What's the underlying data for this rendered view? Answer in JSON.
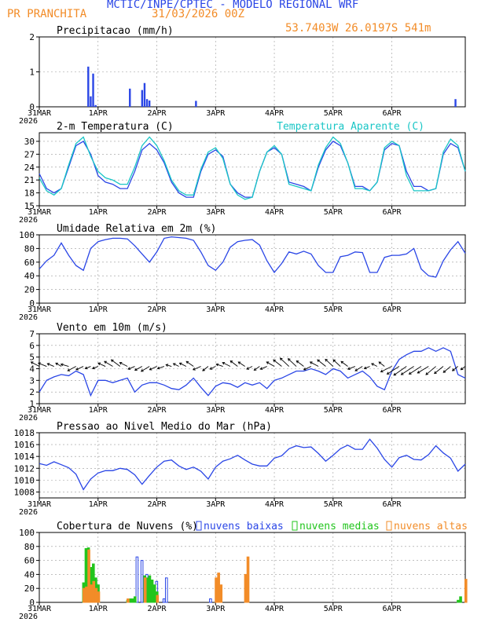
{
  "header": {
    "title": "MCTIC/INPE/CPTEC - MODELO REGIONAL WRF",
    "location": "PR PRANCHITA",
    "run_date": "31/03/2026 00Z",
    "coords": "53.7403W 26.0197S 541m"
  },
  "colors": {
    "blue": "#2a46e6",
    "cyan": "#19c6c6",
    "green": "#22c51d",
    "orange": "#f28c28",
    "grid": "#9a9a9a",
    "black": "#000000"
  },
  "x_ticks": [
    "31MAR",
    "1APR",
    "2APR",
    "3APR",
    "4APR",
    "5APR",
    "6APR"
  ],
  "x_year": "2026",
  "chart_data": [
    {
      "id": "precip",
      "type": "bar",
      "title": "Precipitacao (mm/h)",
      "ylim": [
        0,
        2
      ],
      "yticks": [
        0,
        1,
        2
      ],
      "x_unit": "hours since 31MAR 00Z",
      "x": [
        20,
        21,
        22,
        23,
        37,
        42,
        43,
        44,
        45,
        64,
        170
      ],
      "values": [
        1.15,
        0.3,
        0.95,
        0.05,
        0.52,
        0.48,
        0.68,
        0.22,
        0.18,
        0.17,
        0.22
      ]
    },
    {
      "id": "temp",
      "type": "line",
      "title": "2-m Temperatura (C)",
      "legend": "Temperatura Aparente (C)",
      "ylim": [
        15,
        32
      ],
      "yticks": [
        15,
        18,
        21,
        24,
        27,
        30
      ],
      "x_unit": "hours since 31MAR 00Z",
      "series": [
        {
          "name": "Temperatura (C)",
          "color": "blue",
          "x": [
            0,
            3,
            6,
            9,
            12,
            15,
            18,
            21,
            24,
            27,
            30,
            33,
            36,
            39,
            42,
            45,
            48,
            51,
            54,
            57,
            60,
            63,
            66,
            69,
            72,
            75,
            78,
            81,
            84,
            87,
            90,
            93,
            96,
            99,
            102,
            105,
            108,
            111,
            114,
            117,
            120,
            123,
            126,
            129,
            132,
            135,
            138,
            141,
            144,
            147,
            150,
            153,
            156,
            159,
            162,
            165,
            168,
            171,
            174
          ],
          "y": [
            22.5,
            19,
            18,
            19,
            24,
            29,
            30,
            27,
            22,
            20.5,
            20,
            19,
            19,
            23,
            28,
            29.5,
            28,
            25,
            20.5,
            18,
            17,
            17,
            23,
            27,
            28,
            26.5,
            20,
            18,
            17,
            17,
            23,
            27.5,
            28.5,
            27,
            20.5,
            20,
            19.5,
            18.5,
            24,
            28,
            30,
            29,
            25,
            19.5,
            19.5,
            18.5,
            20.5,
            28,
            29.5,
            29,
            23,
            19.5,
            19.5,
            18.5,
            19,
            27,
            29.5,
            28.5,
            23
          ]
        },
        {
          "name": "Temperatura Aparente (C)",
          "color": "cyan",
          "x": [
            0,
            3,
            6,
            9,
            12,
            15,
            18,
            21,
            24,
            27,
            30,
            33,
            36,
            39,
            42,
            45,
            48,
            51,
            54,
            57,
            60,
            63,
            66,
            69,
            72,
            75,
            78,
            81,
            84,
            87,
            90,
            93,
            96,
            99,
            102,
            105,
            108,
            111,
            114,
            117,
            120,
            123,
            126,
            129,
            132,
            135,
            138,
            141,
            144,
            147,
            150,
            153,
            156,
            159,
            162,
            165,
            168,
            171,
            174
          ],
          "y": [
            21.5,
            18.5,
            17.5,
            19,
            24.5,
            29.5,
            31,
            26.5,
            23,
            21.5,
            21,
            20,
            20,
            24,
            29,
            31,
            29,
            25.5,
            21,
            18.5,
            17.5,
            17.5,
            23.5,
            27.5,
            28.5,
            26,
            20,
            17.5,
            16.5,
            17,
            23,
            27.5,
            29,
            27,
            20,
            19.5,
            19,
            18.5,
            24.5,
            28.5,
            31,
            29.5,
            25,
            19,
            19,
            18.5,
            20.5,
            28.5,
            30,
            29,
            22,
            18.5,
            18.5,
            18.5,
            19,
            27.5,
            30.5,
            29,
            23
          ]
        }
      ]
    },
    {
      "id": "rh",
      "type": "line",
      "title": "Umidade Relativa em 2m (%)",
      "ylim": [
        0,
        100
      ],
      "yticks": [
        0,
        20,
        40,
        60,
        80,
        100
      ],
      "x_unit": "hours since 31MAR 00Z",
      "series": [
        {
          "name": "Umidade Relativa",
          "color": "blue",
          "x": [
            0,
            3,
            6,
            9,
            12,
            15,
            18,
            21,
            24,
            27,
            30,
            33,
            36,
            39,
            42,
            45,
            48,
            51,
            54,
            57,
            60,
            63,
            66,
            69,
            72,
            75,
            78,
            81,
            84,
            87,
            90,
            93,
            96,
            99,
            102,
            105,
            108,
            111,
            114,
            117,
            120,
            123,
            126,
            129,
            132,
            135,
            138,
            141,
            144,
            147,
            150,
            153,
            156,
            159,
            162,
            165,
            168,
            171,
            174
          ],
          "y": [
            50,
            62,
            70,
            88,
            70,
            55,
            48,
            80,
            90,
            93,
            95,
            95,
            94,
            84,
            72,
            60,
            75,
            95,
            97,
            96,
            95,
            92,
            75,
            55,
            48,
            60,
            82,
            90,
            92,
            93,
            85,
            62,
            45,
            58,
            75,
            72,
            76,
            72,
            55,
            45,
            45,
            68,
            70,
            75,
            74,
            45,
            45,
            67,
            70,
            70,
            72,
            80,
            50,
            40,
            38,
            62,
            78,
            90,
            73
          ]
        }
      ]
    },
    {
      "id": "wind",
      "type": "line",
      "title": "Vento em 10m (m/s)",
      "ylim": [
        1,
        7
      ],
      "yticks": [
        1,
        2,
        3,
        4,
        5,
        6,
        7
      ],
      "x_unit": "hours since 31MAR 00Z",
      "series": [
        {
          "name": "Vento em 10m",
          "color": "blue",
          "x": [
            0,
            3,
            6,
            9,
            12,
            15,
            18,
            21,
            24,
            27,
            30,
            33,
            36,
            39,
            42,
            45,
            48,
            51,
            54,
            57,
            60,
            63,
            66,
            69,
            72,
            75,
            78,
            81,
            84,
            87,
            90,
            93,
            96,
            99,
            102,
            105,
            108,
            111,
            114,
            117,
            120,
            123,
            126,
            129,
            132,
            135,
            138,
            141,
            144,
            147,
            150,
            153,
            156,
            159,
            162,
            165,
            168,
            171,
            174
          ],
          "y": [
            2,
            3,
            3.3,
            3.5,
            3.4,
            3.8,
            3.5,
            1.7,
            3,
            3,
            2.8,
            3,
            3.2,
            2,
            2.6,
            2.8,
            2.8,
            2.6,
            2.3,
            2.2,
            2.6,
            3.2,
            2.4,
            1.7,
            2.5,
            2.8,
            2.7,
            2.4,
            2.8,
            2.6,
            2.8,
            2.3,
            3,
            3.2,
            3.5,
            3.8,
            3.8,
            4,
            3.8,
            3.5,
            4,
            3.8,
            3.2,
            3.5,
            3.8,
            3.3,
            2.5,
            2.2,
            3.8,
            4.8,
            5.2,
            5.5,
            5.5,
            5.8,
            5.5,
            5.8,
            5.5,
            3.5,
            3.2
          ]
        }
      ],
      "vectors": {
        "x": [
          0,
          3,
          6,
          9,
          12,
          15,
          18,
          21,
          24,
          27,
          30,
          33,
          36,
          39,
          42,
          45,
          48,
          51,
          54,
          57,
          60,
          63,
          66,
          69,
          72,
          75,
          78,
          81,
          84,
          87,
          90,
          93,
          96,
          99,
          102,
          105,
          108,
          111,
          114,
          117,
          120,
          123,
          126,
          129,
          132,
          135,
          138,
          141,
          144,
          147,
          150,
          153,
          156,
          159,
          162,
          165,
          168,
          171,
          174
        ],
        "u": [
          -1.5,
          -1.5,
          -1.2,
          -1,
          -1.4,
          -1.5,
          -1.3,
          -1,
          -1,
          -1.3,
          -1.5,
          -1.6,
          -1.4,
          -1.2,
          -1.3,
          -1.5,
          -1.3,
          -1.2,
          -1,
          -1,
          -1.2,
          -1.3,
          -1.4,
          -1,
          -1,
          -1.2,
          -1.4,
          -1.3,
          -1.2,
          -1,
          -1,
          -1.2,
          -1.4,
          -1.5,
          -1.6,
          -1.5,
          -1.3,
          -1.3,
          -1.5,
          -1.5,
          -1.4,
          -1.3,
          -1.2,
          -1.3,
          -1.3,
          -1,
          -1,
          -1,
          -2,
          -2.2,
          -2.3,
          -2.3,
          -2.2,
          -2,
          -1.8,
          -1.6,
          -1.3,
          -1,
          -0.8
        ],
        "v": [
          0.8,
          0.6,
          0.5,
          0.6,
          0.4,
          -0.8,
          -0.6,
          -0.4,
          -0.4,
          0.6,
          0.9,
          1.2,
          0.7,
          -0.5,
          -0.7,
          -0.9,
          -0.6,
          -0.4,
          0.3,
          0.5,
          0.6,
          0.9,
          -0.6,
          -0.8,
          -0.5,
          0.4,
          0.7,
          1,
          0.8,
          -0.5,
          -0.7,
          -0.5,
          0.8,
          1.2,
          1.5,
          1.4,
          1,
          -0.6,
          0.8,
          1.2,
          1.3,
          1.2,
          0.9,
          -0.5,
          -0.8,
          -0.4,
          0.5,
          0.8,
          -1,
          -1.4,
          -1.6,
          -1.5,
          -1.4,
          -1.2,
          -1.5,
          -1.3,
          -1.1,
          -0.8,
          -0.6
        ]
      }
    },
    {
      "id": "pressure",
      "type": "line",
      "title": "Pressao ao Nivel Medio do Mar (hPa)",
      "ylim": [
        1007,
        1018
      ],
      "yticks": [
        1008,
        1010,
        1012,
        1014,
        1016,
        1018
      ],
      "x_unit": "hours since 31MAR 00Z",
      "series": [
        {
          "name": "Pressao",
          "color": "blue",
          "x": [
            0,
            3,
            6,
            9,
            12,
            15,
            18,
            21,
            24,
            27,
            30,
            33,
            36,
            39,
            42,
            45,
            48,
            51,
            54,
            57,
            60,
            63,
            66,
            69,
            72,
            75,
            78,
            81,
            84,
            87,
            90,
            93,
            96,
            99,
            102,
            105,
            108,
            111,
            114,
            117,
            120,
            123,
            126,
            129,
            132,
            135,
            138,
            141,
            144,
            147,
            150,
            153,
            156,
            159,
            162,
            165,
            168,
            171,
            174
          ],
          "y": [
            1012.8,
            1012.5,
            1013.1,
            1012.6,
            1012.1,
            1011,
            1008.4,
            1010.2,
            1011.2,
            1011.6,
            1011.6,
            1012,
            1011.8,
            1010.9,
            1009.3,
            1010.8,
            1012.2,
            1013.2,
            1013.4,
            1012.4,
            1011.8,
            1012.2,
            1011.5,
            1010.2,
            1012.2,
            1013.2,
            1013.6,
            1014.2,
            1013.4,
            1012.7,
            1012.4,
            1012.4,
            1013.7,
            1014.1,
            1015.3,
            1015.8,
            1015.5,
            1015.6,
            1014.5,
            1013.2,
            1014.2,
            1015.3,
            1015.9,
            1015.2,
            1015.2,
            1016.9,
            1015.4,
            1013.5,
            1012.2,
            1013.8,
            1014.2,
            1013.5,
            1013.4,
            1014.3,
            1015.8,
            1014.6,
            1013.7,
            1011.5,
            1012.7
          ]
        }
      ]
    },
    {
      "id": "clouds",
      "type": "bar",
      "title": "Cobertura de Nuvens (%)",
      "ylim": [
        0,
        100
      ],
      "yticks": [
        0,
        20,
        40,
        60,
        80,
        100
      ],
      "legend": [
        "nuvens baixas",
        "nuvens medias",
        "nuvens altas"
      ],
      "x_unit": "hours since 31MAR 00Z",
      "series": [
        {
          "name": "nuvens baixas",
          "color": "blue",
          "x": [
            20,
            22,
            40,
            42,
            44,
            45,
            48,
            51,
            52,
            70
          ],
          "values": [
            5,
            5,
            65,
            60,
            40,
            35,
            30,
            5,
            35,
            5
          ]
        },
        {
          "name": "nuvens medias",
          "color": "green",
          "x": [
            18,
            19,
            20,
            21,
            22,
            23,
            24,
            36,
            37,
            38,
            39,
            43,
            44,
            45,
            46,
            47,
            48,
            171,
            172
          ],
          "values": [
            28,
            77,
            78,
            50,
            55,
            35,
            25,
            3,
            5,
            5,
            8,
            38,
            35,
            38,
            32,
            25,
            15,
            3,
            8
          ],
          "bar_style": "filled"
        },
        {
          "name": "nuvens altas",
          "color": "orange",
          "x": [
            18,
            19,
            20,
            21,
            22,
            23,
            24,
            36,
            43,
            48,
            72,
            73,
            74,
            84,
            85,
            174
          ],
          "values": [
            20,
            22,
            75,
            25,
            30,
            20,
            15,
            5,
            35,
            10,
            35,
            42,
            25,
            40,
            65,
            33
          ],
          "bar_style": "filled"
        }
      ]
    }
  ]
}
